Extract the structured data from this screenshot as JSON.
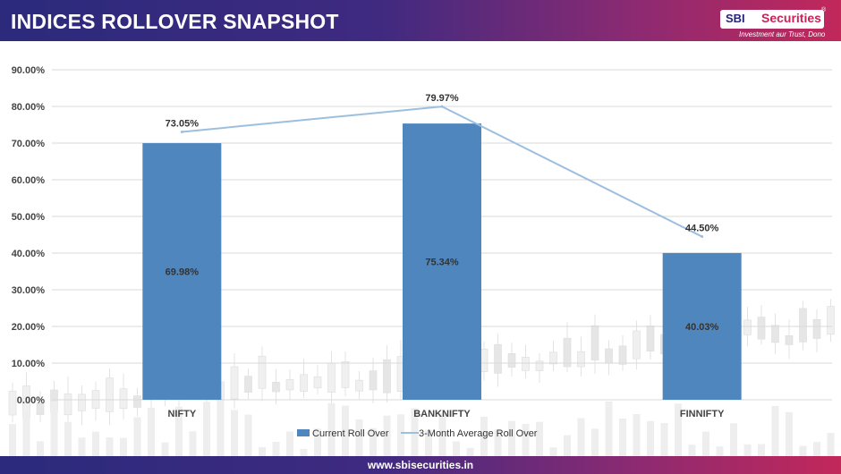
{
  "header": {
    "title": "INDICES ROLLOVER SNAPSHOT",
    "logo_sbi": "SBI",
    "logo_securities": "Securities",
    "logo_reg": "®",
    "tagline": "Investment aur Trust, Dono"
  },
  "footer": {
    "url": "www.sbisecurities.in"
  },
  "colors": {
    "header_start": "#2b2a7c",
    "header_end": "#c2285a",
    "bar": "#4f86bd",
    "line": "#9cbfe0"
  },
  "chart_data": {
    "type": "bar",
    "categories": [
      "NIFTY",
      "BANKNIFTY",
      "FINNIFTY"
    ],
    "series": [
      {
        "name": "Current Roll Over",
        "type": "bar",
        "values": [
          69.98,
          75.34,
          40.03
        ],
        "labels": [
          "69.98%",
          "75.34%",
          "40.03%"
        ]
      },
      {
        "name": "3-Month Average Roll Over",
        "type": "line",
        "values": [
          73.05,
          79.97,
          44.5
        ],
        "labels": [
          "73.05%",
          "79.97%",
          "44.50%"
        ]
      }
    ],
    "ylim": [
      0,
      90
    ],
    "yticks": [
      "0.00%",
      "10.00%",
      "20.00%",
      "30.00%",
      "40.00%",
      "50.00%",
      "60.00%",
      "70.00%",
      "80.00%",
      "90.00%"
    ],
    "grid": true,
    "legend_position": "bottom"
  }
}
